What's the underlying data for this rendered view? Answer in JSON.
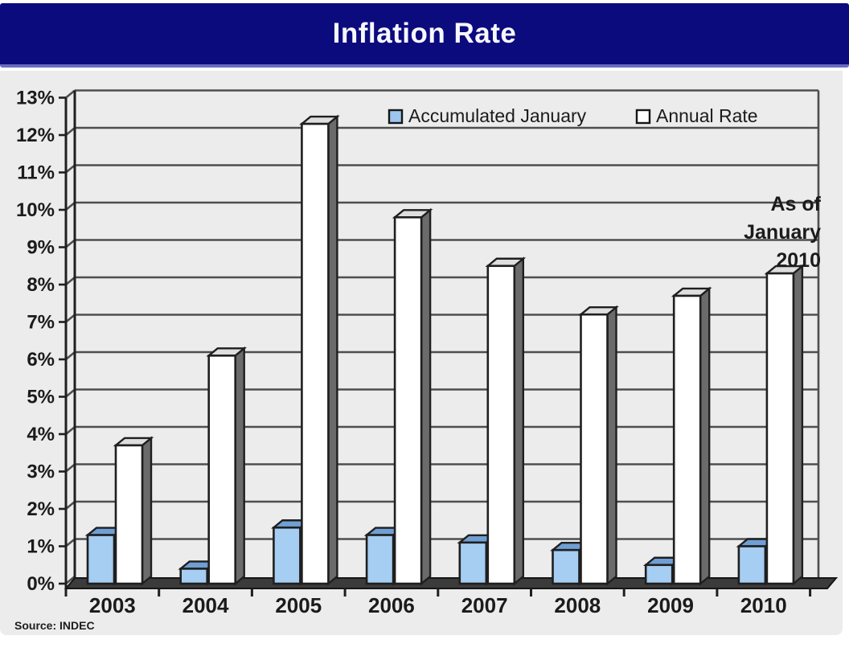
{
  "title": {
    "text": "Inflation Rate"
  },
  "source": {
    "text": "Source: INDEC"
  },
  "annotation": {
    "lines": [
      "As of",
      "January",
      "2010"
    ]
  },
  "legend": {
    "items": [
      {
        "label": "Accumulated January",
        "swatch_color": "#9cc6ee"
      },
      {
        "label": "Annual Rate",
        "swatch_color": "#ffffff"
      }
    ]
  },
  "colors": {
    "title_bar_bg": "#0b0b7e",
    "title_text": "#f7f7ff",
    "panel_bg": "#ececec",
    "gridline": "#4e4e4e",
    "axis_outline": "#1f1f1f",
    "floor": "#3b3b3b",
    "label_text": "#1b1b1b",
    "blue_bar_front": "#a6cdf2",
    "blue_bar_top": "#6f9fd4",
    "blue_bar_side": "#47698f",
    "white_bar_front": "#ffffff",
    "white_bar_top": "#dedede",
    "white_bar_side": "#6b6b6b"
  },
  "chart_data": {
    "type": "bar",
    "style": "3d",
    "title": "Inflation Rate",
    "categories": [
      "2003",
      "2004",
      "2005",
      "2006",
      "2007",
      "2008",
      "2009",
      "2010"
    ],
    "series": [
      {
        "name": "Accumulated January",
        "values": [
          1.3,
          0.4,
          1.5,
          1.3,
          1.1,
          0.9,
          0.5,
          1.0
        ]
      },
      {
        "name": "Annual Rate",
        "values": [
          3.7,
          6.1,
          12.3,
          9.8,
          8.5,
          7.2,
          7.7,
          8.3
        ]
      }
    ],
    "xlabel": "",
    "ylabel": "",
    "ylim": [
      0,
      13
    ],
    "ytick_step": 1,
    "yticks": [
      "0%",
      "1%",
      "2%",
      "3%",
      "4%",
      "5%",
      "6%",
      "7%",
      "8%",
      "9%",
      "10%",
      "11%",
      "12%",
      "13%"
    ],
    "grid": true,
    "legend_position": "top",
    "annotation": "As of January 2010"
  }
}
